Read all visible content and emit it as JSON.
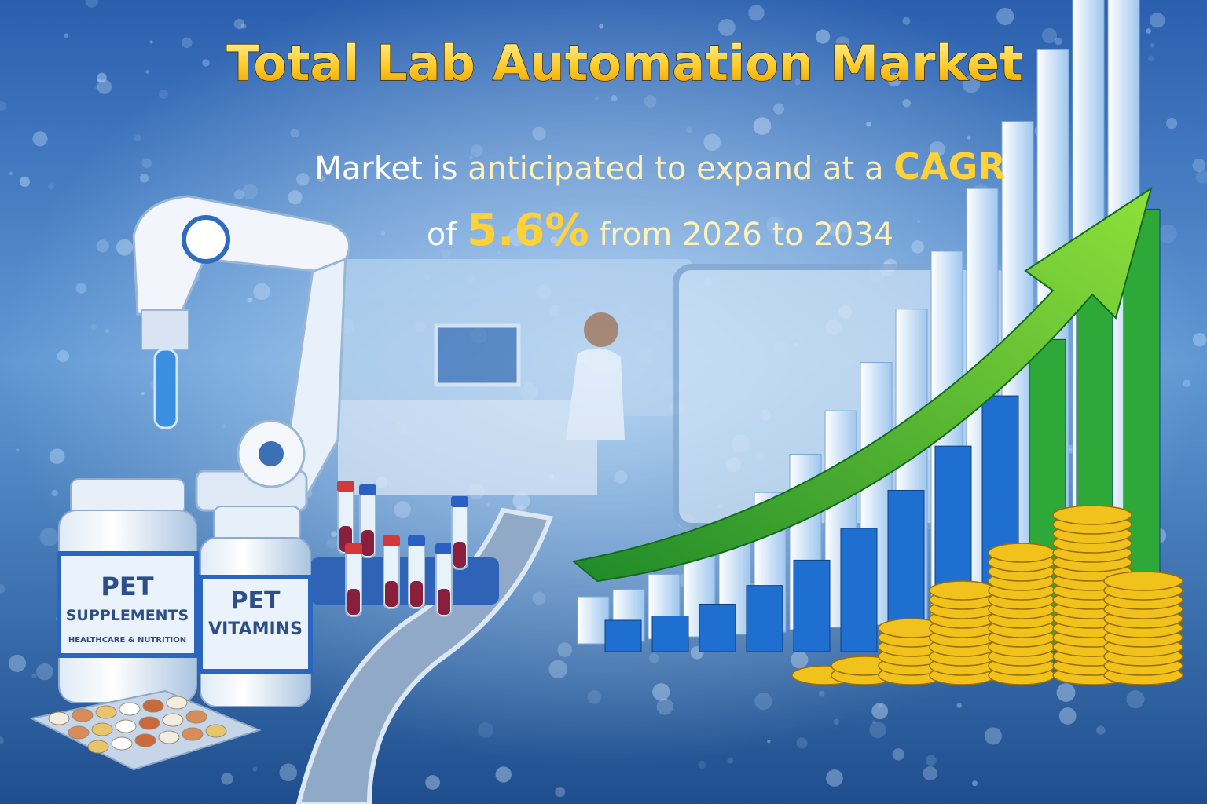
{
  "header": {
    "title": "Total Lab Automation Market",
    "subtitle": {
      "line1": [
        "Market is",
        "anticipated to expand at a",
        "CAGR"
      ],
      "line2": [
        "of",
        "5.6%",
        "from 2026 to 2034"
      ]
    }
  },
  "products": [
    {
      "brand": "PET",
      "label": "SUPPLEMENTS",
      "tagline": "HEALTHCARE & NUTRITION"
    },
    {
      "brand": "PET",
      "label": "VITAMINS"
    }
  ]
}
